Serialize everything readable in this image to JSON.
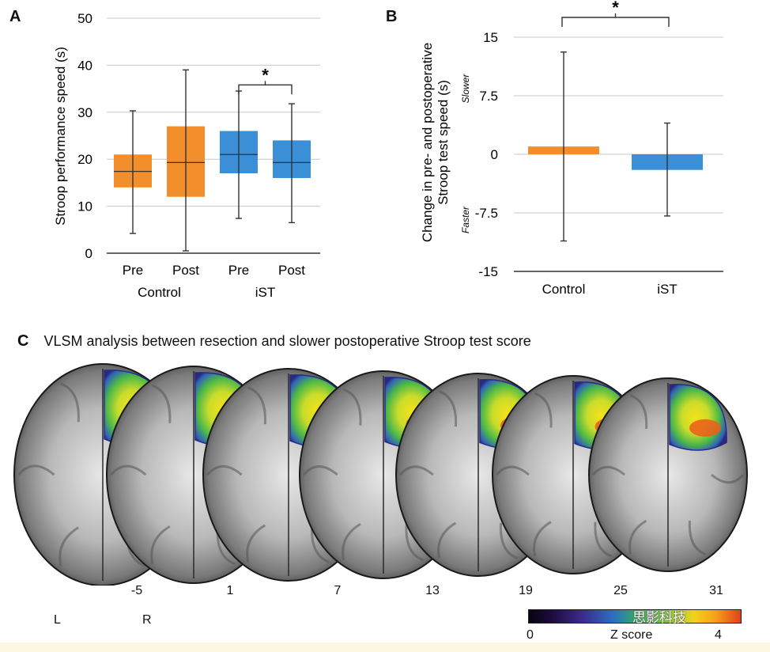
{
  "colors": {
    "control": "#F28E2B",
    "ist": "#3A8FD6",
    "gridline": "#c8c8c8",
    "axis": "#333333",
    "whisker": "#333333"
  },
  "panelA": {
    "letter": "A",
    "chart_data": {
      "type": "box",
      "ylabel": "Stroop performance speed (s)",
      "ylim": [
        0,
        50
      ],
      "yticks": [
        0,
        10,
        20,
        30,
        40,
        50
      ],
      "grid": true,
      "groups": [
        "Control",
        "iST"
      ],
      "categories": [
        "Pre",
        "Post",
        "Pre",
        "Post"
      ],
      "boxes": [
        {
          "group": "Control",
          "label": "Pre",
          "q1": 14,
          "median": 17.4,
          "q3": 21,
          "whisker_low": 4.2,
          "whisker_high": 30.3,
          "color_key": "control"
        },
        {
          "group": "Control",
          "label": "Post",
          "q1": 12,
          "median": 19.3,
          "q3": 27,
          "whisker_low": 0.5,
          "whisker_high": 39.0,
          "color_key": "control"
        },
        {
          "group": "iST",
          "label": "Pre",
          "q1": 17,
          "median": 21.0,
          "q3": 26,
          "whisker_low": 7.4,
          "whisker_high": 34.5,
          "color_key": "ist"
        },
        {
          "group": "iST",
          "label": "Post",
          "q1": 16,
          "median": 19.3,
          "q3": 24,
          "whisker_low": 6.5,
          "whisker_high": 31.8,
          "color_key": "ist"
        }
      ],
      "significance": {
        "between": [
          2,
          3
        ],
        "bracket_y": 38,
        "label": "*"
      }
    }
  },
  "panelB": {
    "letter": "B",
    "chart_data": {
      "type": "bar",
      "ylabel_line1": "Change in pre- and postoperative",
      "ylabel_line2": "Stroop test speed (s)",
      "direction_up": "Slower",
      "direction_down": "Faster",
      "ylim": [
        -15,
        15
      ],
      "yticks": [
        -15,
        -7.5,
        0,
        7.5,
        15
      ],
      "ytick_labels": [
        "-15",
        "-7.5",
        "0",
        "7.5",
        "15"
      ],
      "grid": true,
      "categories": [
        "Control",
        "iST"
      ],
      "values": [
        1.0,
        -2.0
      ],
      "error_high": [
        13.1,
        4.0
      ],
      "error_low": [
        -11.1,
        -7.9
      ],
      "color_keys": [
        "control",
        "ist"
      ],
      "significance": {
        "between": [
          0,
          1
        ],
        "bracket_y": 17,
        "label": "*"
      }
    }
  },
  "panelC": {
    "letter": "C",
    "title": "VLSM analysis between resection and slower postoperative Stroop test score",
    "slice_labels": [
      "-5",
      "1",
      "7",
      "13",
      "19",
      "25",
      "31"
    ],
    "left_label": "L",
    "right_label": "R",
    "colorbar": {
      "min_label": "0",
      "max_label": "4",
      "title": "Z score",
      "min": 0,
      "max": 4
    },
    "watermark": "思影科技"
  }
}
